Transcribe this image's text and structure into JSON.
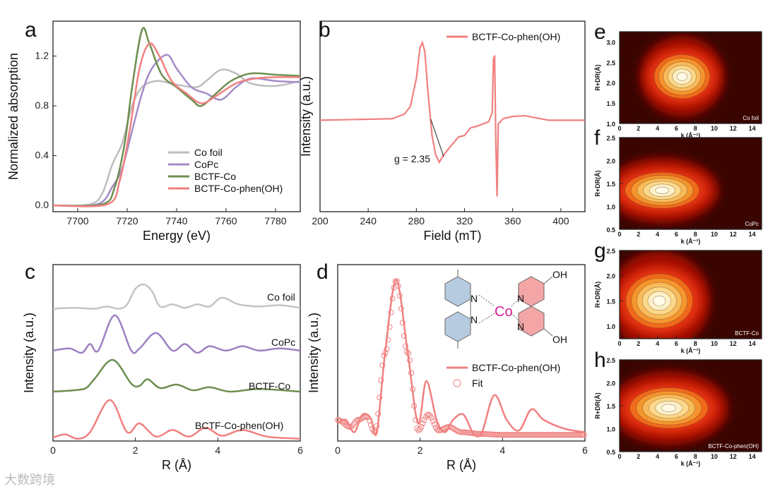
{
  "watermark": "大数跨境",
  "chart_data": [
    {
      "panel": "a",
      "type": "line",
      "xlabel": "Energy (eV)",
      "ylabel": "Normalized absorption",
      "xlim": [
        7690,
        7790
      ],
      "ylim": [
        -0.05,
        1.48
      ],
      "xticks": [
        7700,
        7720,
        7740,
        7760,
        7780
      ],
      "yticks": [
        "0.0",
        "0.4",
        "0.8",
        "1.2"
      ],
      "legend_position": "bottom-right",
      "series": [
        {
          "name": "Co foil",
          "color": "#bdbdbd",
          "points": [
            [
              7690,
              0
            ],
            [
              7705,
              0.01
            ],
            [
              7710,
              0.1
            ],
            [
              7714,
              0.33
            ],
            [
              7718,
              0.5
            ],
            [
              7722,
              0.8
            ],
            [
              7726,
              0.95
            ],
            [
              7732,
              1.0
            ],
            [
              7740,
              0.97
            ],
            [
              7748,
              0.95
            ],
            [
              7752,
              1.0
            ],
            [
              7758,
              1.09
            ],
            [
              7764,
              1.06
            ],
            [
              7770,
              0.98
            ],
            [
              7780,
              0.96
            ],
            [
              7790,
              1.0
            ]
          ]
        },
        {
          "name": "CoPc",
          "color": "#a58cc8",
          "points": [
            [
              7690,
              0
            ],
            [
              7708,
              0.01
            ],
            [
              7714,
              0.15
            ],
            [
              7718,
              0.3
            ],
            [
              7722,
              0.6
            ],
            [
              7726,
              0.9
            ],
            [
              7730,
              1.1
            ],
            [
              7736,
              1.21
            ],
            [
              7740,
              1.1
            ],
            [
              7746,
              0.95
            ],
            [
              7752,
              0.9
            ],
            [
              7758,
              0.85
            ],
            [
              7764,
              0.95
            ],
            [
              7770,
              1.02
            ],
            [
              7780,
              1.0
            ],
            [
              7790,
              0.99
            ]
          ]
        },
        {
          "name": "BCTF-Co",
          "color": "#6e8f50",
          "points": [
            [
              7690,
              0
            ],
            [
              7710,
              0.01
            ],
            [
              7715,
              0.15
            ],
            [
              7719,
              0.5
            ],
            [
              7722,
              0.95
            ],
            [
              7726,
              1.41
            ],
            [
              7729,
              1.3
            ],
            [
              7734,
              1.05
            ],
            [
              7740,
              0.95
            ],
            [
              7746,
              0.85
            ],
            [
              7750,
              0.8
            ],
            [
              7756,
              0.9
            ],
            [
              7762,
              1.0
            ],
            [
              7770,
              1.06
            ],
            [
              7780,
              1.05
            ],
            [
              7790,
              1.04
            ]
          ]
        },
        {
          "name": "BCTF-Co-phen(OH)",
          "color": "#f08080",
          "points": [
            [
              7690,
              0
            ],
            [
              7712,
              0.01
            ],
            [
              7717,
              0.2
            ],
            [
              7721,
              0.6
            ],
            [
              7725,
              1.1
            ],
            [
              7729,
              1.3
            ],
            [
              7733,
              1.2
            ],
            [
              7738,
              1.0
            ],
            [
              7744,
              0.9
            ],
            [
              7750,
              0.82
            ],
            [
              7756,
              0.88
            ],
            [
              7764,
              0.98
            ],
            [
              7772,
              1.02
            ],
            [
              7780,
              1.03
            ],
            [
              7790,
              1.03
            ]
          ]
        }
      ]
    },
    {
      "panel": "b",
      "type": "line",
      "xlabel": "Field (mT)",
      "ylabel": "Intensity (a.u.)",
      "xlim": [
        200,
        420
      ],
      "ylim": [
        -1.2,
        1.3
      ],
      "xticks": [
        200,
        240,
        280,
        320,
        360,
        400
      ],
      "legend_position": "top-right",
      "annotation": "g = 2.35",
      "annotation_x": 292,
      "series": [
        {
          "name": "BCTF-Co-phen(OH)",
          "color": "#f08080",
          "points": [
            [
              200,
              0
            ],
            [
              230,
              0.01
            ],
            [
              260,
              0.02
            ],
            [
              270,
              0.08
            ],
            [
              275,
              0.18
            ],
            [
              280,
              0.55
            ],
            [
              283,
              0.95
            ],
            [
              285,
              1.02
            ],
            [
              287,
              0.9
            ],
            [
              290,
              0.3
            ],
            [
              293,
              -0.2
            ],
            [
              296,
              -0.45
            ],
            [
              299,
              -0.55
            ],
            [
              303,
              -0.45
            ],
            [
              308,
              -0.35
            ],
            [
              315,
              -0.22
            ],
            [
              320,
              -0.2
            ],
            [
              325,
              -0.1
            ],
            [
              330,
              -0.08
            ],
            [
              335,
              -0.05
            ],
            [
              340,
              -0.02
            ],
            [
              343,
              0.1
            ],
            [
              344,
              0.8
            ],
            [
              345,
              0.85
            ],
            [
              346,
              -0.3
            ],
            [
              347,
              -1.0
            ],
            [
              348,
              -0.05
            ],
            [
              352,
              0.02
            ],
            [
              360,
              0.05
            ],
            [
              370,
              0.06
            ],
            [
              380,
              0.03
            ],
            [
              390,
              0.0
            ],
            [
              400,
              0.0
            ],
            [
              410,
              0.0
            ],
            [
              420,
              0.0
            ]
          ]
        }
      ]
    },
    {
      "panel": "c",
      "type": "line",
      "xlabel": "R (Å)",
      "ylabel": "Intensity (a.u.)",
      "xlim": [
        0,
        6
      ],
      "ylim": [
        0,
        4
      ],
      "xticks": [
        0,
        2,
        4,
        6
      ],
      "series": [
        {
          "name": "Co foil",
          "color": "#c4c4c4",
          "points": [
            [
              0,
              3.0
            ],
            [
              0.5,
              3.02
            ],
            [
              1,
              3.0
            ],
            [
              1.3,
              3.05
            ],
            [
              1.6,
              3.0
            ],
            [
              1.8,
              3.1
            ],
            [
              2.0,
              3.45
            ],
            [
              2.2,
              3.55
            ],
            [
              2.4,
              3.4
            ],
            [
              2.6,
              3.05
            ],
            [
              2.9,
              3.1
            ],
            [
              3.2,
              3.02
            ],
            [
              3.5,
              3.1
            ],
            [
              3.8,
              3.05
            ],
            [
              4.1,
              3.25
            ],
            [
              4.5,
              3.1
            ],
            [
              5,
              3.05
            ],
            [
              5.5,
              3.08
            ],
            [
              6,
              3.02
            ]
          ]
        },
        {
          "name": "CoPc",
          "color": "#9e7fc2",
          "points": [
            [
              0,
              2.05
            ],
            [
              0.4,
              2.1
            ],
            [
              0.7,
              2.0
            ],
            [
              0.9,
              2.2
            ],
            [
              1.1,
              2.05
            ],
            [
              1.5,
              2.85
            ],
            [
              1.9,
              2.05
            ],
            [
              2.1,
              2.1
            ],
            [
              2.5,
              2.45
            ],
            [
              2.9,
              2.05
            ],
            [
              3.2,
              2.2
            ],
            [
              3.5,
              2.0
            ],
            [
              3.8,
              2.15
            ],
            [
              4.2,
              2.05
            ],
            [
              4.6,
              2.15
            ],
            [
              5,
              2.05
            ],
            [
              5.5,
              2.1
            ],
            [
              6,
              2.05
            ]
          ]
        },
        {
          "name": "BCTF-Co",
          "color": "#6e8f50",
          "points": [
            [
              0,
              1.12
            ],
            [
              0.5,
              1.15
            ],
            [
              0.8,
              1.2
            ],
            [
              1.0,
              1.4
            ],
            [
              1.45,
              1.84
            ],
            [
              1.9,
              1.3
            ],
            [
              2.1,
              1.25
            ],
            [
              2.3,
              1.4
            ],
            [
              2.6,
              1.2
            ],
            [
              3,
              1.28
            ],
            [
              3.4,
              1.15
            ],
            [
              3.8,
              1.22
            ],
            [
              4.3,
              1.12
            ],
            [
              5,
              1.18
            ],
            [
              6,
              1.12
            ]
          ]
        },
        {
          "name": "BCTF-Co-phen(OH)",
          "color": "#f08080",
          "points": [
            [
              0,
              0.08
            ],
            [
              0.3,
              0.15
            ],
            [
              0.6,
              0.05
            ],
            [
              0.9,
              0.2
            ],
            [
              1.38,
              0.93
            ],
            [
              1.8,
              0.2
            ],
            [
              2.1,
              0.4
            ],
            [
              2.5,
              0.1
            ],
            [
              2.9,
              0.25
            ],
            [
              3.3,
              0.1
            ],
            [
              3.7,
              0.3
            ],
            [
              4.1,
              0.12
            ],
            [
              4.6,
              0.25
            ],
            [
              5.2,
              0.1
            ],
            [
              6,
              0.05
            ]
          ]
        }
      ]
    },
    {
      "panel": "d",
      "type": "line",
      "xlabel": "R (Å)",
      "ylabel": "Intensity (a.u.)",
      "xlim": [
        0,
        6
      ],
      "ylim": [
        0,
        1
      ],
      "xticks": [
        0,
        2,
        4,
        6
      ],
      "legend_position": "right",
      "structure_labels": {
        "metal": "Co",
        "n": "N",
        "oh": "OH"
      },
      "series": [
        {
          "name": "BCTF-Co-phen(OH)",
          "style": "line",
          "color": "#f08080",
          "points": [
            [
              0,
              0.1
            ],
            [
              0.2,
              0.12
            ],
            [
              0.4,
              0.05
            ],
            [
              0.6,
              0.15
            ],
            [
              0.8,
              0.13
            ],
            [
              0.95,
              0.05
            ],
            [
              1.15,
              0.5
            ],
            [
              1.42,
              0.91
            ],
            [
              1.7,
              0.5
            ],
            [
              1.95,
              0.1
            ],
            [
              2.15,
              0.34
            ],
            [
              2.4,
              0.12
            ],
            [
              2.6,
              0.05
            ],
            [
              2.8,
              0.12
            ],
            [
              3.05,
              0.15
            ],
            [
              3.3,
              0.04
            ],
            [
              3.5,
              0.05
            ],
            [
              3.8,
              0.26
            ],
            [
              4.1,
              0.12
            ],
            [
              4.4,
              0.06
            ],
            [
              4.7,
              0.18
            ],
            [
              5.0,
              0.12
            ],
            [
              5.5,
              0.07
            ],
            [
              6,
              0.05
            ]
          ]
        },
        {
          "name": "Fit",
          "style": "circles",
          "color": "#f08080",
          "points": [
            [
              0,
              0.12
            ],
            [
              0.3,
              0.08
            ],
            [
              0.5,
              0.12
            ],
            [
              0.7,
              0.14
            ],
            [
              0.9,
              0.05
            ],
            [
              1.15,
              0.5
            ],
            [
              1.42,
              0.91
            ],
            [
              1.7,
              0.5
            ],
            [
              1.95,
              0.06
            ],
            [
              2.2,
              0.15
            ],
            [
              2.45,
              0.06
            ],
            [
              2.7,
              0.08
            ],
            [
              3,
              0.05
            ],
            [
              3.5,
              0.04
            ],
            [
              4,
              0.035
            ],
            [
              6,
              0.035
            ]
          ]
        }
      ]
    },
    {
      "panel": "e",
      "type": "heatmap",
      "label": "Co foil",
      "xlabel": "k (Å⁻¹)",
      "ylabel": "R+DR(Å)",
      "xlim": [
        0,
        15
      ],
      "ylim": [
        1.0,
        3.25
      ],
      "xticks": [
        0,
        2,
        4,
        6,
        8,
        10,
        12,
        14
      ],
      "yticks": [
        "1.0",
        "1.5",
        "2.0",
        "2.5",
        "3.0"
      ],
      "peak": [
        6.6,
        2.15
      ],
      "spread": [
        3.0,
        0.55
      ]
    },
    {
      "panel": "f",
      "type": "heatmap",
      "label": "CoPc",
      "xlabel": "k (Å⁻¹)",
      "ylabel": "R+DR(Å)",
      "xlim": [
        0,
        15
      ],
      "ylim": [
        0.5,
        2.5
      ],
      "xticks": [
        0,
        2,
        4,
        6,
        8,
        10,
        12,
        14
      ],
      "yticks": [
        "0.5",
        "1.0",
        "1.5",
        "2.0",
        "2.5"
      ],
      "peak": [
        4.5,
        1.35
      ],
      "spread": [
        4.0,
        0.4
      ]
    },
    {
      "panel": "g",
      "type": "heatmap",
      "label": "BCTF-Co",
      "xlabel": "k (Å⁻¹)",
      "ylabel": "R+DR(Å)",
      "xlim": [
        0,
        15
      ],
      "ylim": [
        0.75,
        2.5
      ],
      "xticks": [
        0,
        2,
        4,
        6,
        8,
        10,
        12,
        14
      ],
      "yticks": [
        "1.0",
        "1.5",
        "2.0",
        "2.5"
      ],
      "peak": [
        4.2,
        1.5
      ],
      "spread": [
        3.6,
        0.55
      ]
    },
    {
      "panel": "h",
      "type": "heatmap",
      "label": "BCTF-Co-phen(OH)",
      "xlabel": "k (Å⁻¹)",
      "ylabel": "R+DR(Å)",
      "xlim": [
        0,
        15
      ],
      "ylim": [
        0.5,
        2.5
      ],
      "xticks": [
        0,
        2,
        4,
        6,
        8,
        10,
        12,
        14
      ],
      "yticks": [
        "0.5",
        "1.0",
        "1.5",
        "2.0",
        "2.5"
      ],
      "peak": [
        5.2,
        1.45
      ],
      "spread": [
        4.2,
        0.45
      ]
    }
  ]
}
